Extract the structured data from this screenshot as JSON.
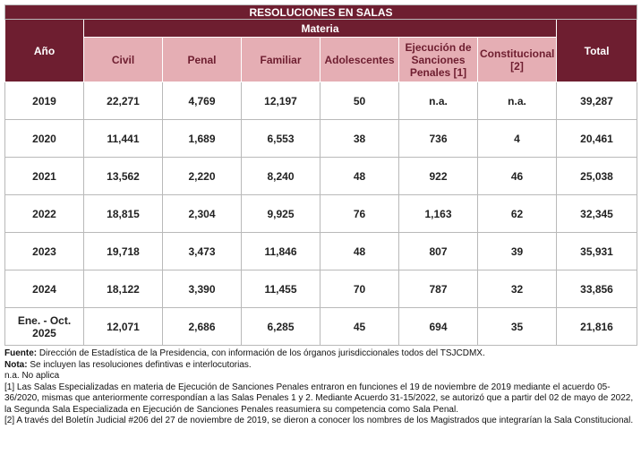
{
  "table": {
    "title": "RESOLUCIONES EN SALAS",
    "year_header": "Año",
    "group_header": "Materia",
    "total_header": "Total",
    "columns": [
      "Civil",
      "Penal",
      "Familiar",
      "Adolescentes",
      "Ejecución de Sanciones Penales [1]",
      "Constitucional [2]"
    ],
    "rows": [
      [
        "2019",
        "22,271",
        "4,769",
        "12,197",
        "50",
        "n.a.",
        "n.a.",
        "39,287"
      ],
      [
        "2020",
        "11,441",
        "1,689",
        "6,553",
        "38",
        "736",
        "4",
        "20,461"
      ],
      [
        "2021",
        "13,562",
        "2,220",
        "8,240",
        "48",
        "922",
        "46",
        "25,038"
      ],
      [
        "2022",
        "18,815",
        "2,304",
        "9,925",
        "76",
        "1,163",
        "62",
        "32,345"
      ],
      [
        "2023",
        "19,718",
        "3,473",
        "11,846",
        "48",
        "807",
        "39",
        "35,931"
      ],
      [
        "2024",
        "18,122",
        "3,390",
        "11,455",
        "70",
        "787",
        "32",
        "33,856"
      ],
      [
        "Ene. - Oct. 2025",
        "12,071",
        "2,686",
        "6,285",
        "45",
        "694",
        "35",
        "21,816"
      ]
    ]
  },
  "notes": [
    {
      "label": "Fuente:",
      "text": " Dirección de Estadística de la Presidencia, con información de los órganos jurisdiccionales todos del TSJCDMX."
    },
    {
      "label": "Nota:",
      "text": " Se incluyen las resoluciones defintivas e interlocutorias."
    },
    {
      "label": "",
      "text": "n.a. No aplica"
    },
    {
      "label": "",
      "text": "[1] Las Salas Especializadas en materia de Ejecución de Sanciones Penales entraron en funciones el 19 de noviembre de 2019 mediante el acuerdo 05-36/2020, mismas que anteriormente correspondían a las Salas Penales 1 y 2. Mediante Acuerdo 31-15/2022,  se autorizó que a partir del 02 de mayo de 2022, la Segunda Sala Especializada en Ejecución de Sanciones Penales reasumiera su competencia como Sala Penal."
    },
    {
      "label": "",
      "text": "[2] A través del Boletín Judicial #206 del 27 de noviembre de 2019, se dieron a conocer los nombres de los Magistrados que integrarían la Sala Constitucional."
    }
  ]
}
